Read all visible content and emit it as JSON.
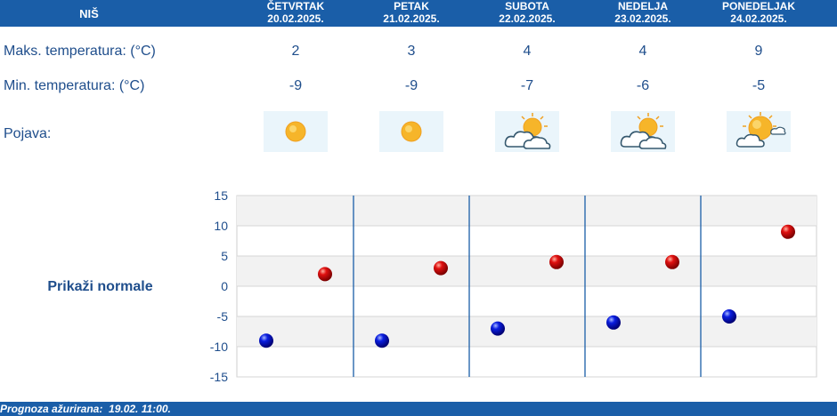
{
  "header": {
    "city": "NIŠ"
  },
  "days": [
    {
      "weekday": "ČETVRTAK",
      "date": "20.02.2025.",
      "max": 2,
      "min": -9,
      "icon": "sun-icon"
    },
    {
      "weekday": "PETAK",
      "date": "21.02.2025.",
      "max": 3,
      "min": -9,
      "icon": "sun-icon"
    },
    {
      "weekday": "SUBOTA",
      "date": "22.02.2025.",
      "max": 4,
      "min": -7,
      "icon": "sun-cloud-icon"
    },
    {
      "weekday": "NEDELJA",
      "date": "23.02.2025.",
      "max": 4,
      "min": -6,
      "icon": "sun-cloud-icon"
    },
    {
      "weekday": "PONEDELJAK",
      "date": "24.02.2025.",
      "max": 9,
      "min": -5,
      "icon": "sun-cloud-icon"
    }
  ],
  "labels": {
    "max": "Maks. temperatura: (°C)",
    "min": "Min. temperatura: (°C)",
    "phenomenon": "Pojava:"
  },
  "normals_link": "Prikaži normale",
  "footer": "Prognoza ažurirana:  19.02. 11:00.",
  "colors": {
    "header": "#1a5ea8",
    "text": "#1f4e8c",
    "max_marker": "#cc0000",
    "min_marker": "#0000cc"
  },
  "chart_data": {
    "type": "scatter",
    "ylim": [
      -15,
      15
    ],
    "yticks": [
      15,
      10,
      5,
      0,
      -5,
      -10,
      -15
    ],
    "categories": [
      "20.02.2025.",
      "21.02.2025.",
      "22.02.2025.",
      "23.02.2025.",
      "24.02.2025."
    ],
    "series": [
      {
        "values": [
          -9,
          -9,
          -7,
          -6,
          -5
        ],
        "color": "#0000cc"
      },
      {
        "values": [
          2,
          3,
          4,
          4,
          9
        ],
        "color": "#cc0000"
      }
    ],
    "grid": true
  }
}
